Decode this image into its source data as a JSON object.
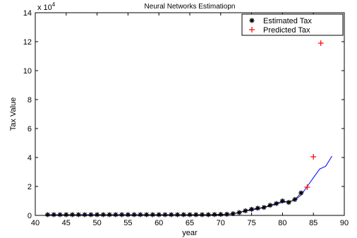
{
  "chart_data": {
    "type": "line",
    "title": "Neural Networks Estimatiopn",
    "xlabel": "year",
    "ylabel": "Tax Value",
    "y_exponent_label": "x 10",
    "y_exponent_power": "4",
    "xlim": [
      40,
      90
    ],
    "ylim": [
      0,
      14
    ],
    "x_ticks": [
      "40",
      "45",
      "50",
      "55",
      "60",
      "65",
      "70",
      "75",
      "80",
      "85",
      "90"
    ],
    "y_ticks": [
      "0",
      "2",
      "4",
      "6",
      "8",
      "10",
      "12",
      "14"
    ],
    "legend_position": "top-right",
    "grid": false,
    "series": [
      {
        "name": "Estimated Tax",
        "marker": "star",
        "color": "#000000",
        "x": [
          42,
          43,
          44,
          45,
          46,
          47,
          48,
          49,
          50,
          51,
          52,
          53,
          54,
          55,
          56,
          57,
          58,
          59,
          60,
          61,
          62,
          63,
          64,
          65,
          66,
          67,
          68,
          69,
          70,
          71,
          72,
          73,
          74,
          75,
          76,
          77,
          78,
          79,
          80,
          81,
          82,
          83
        ],
        "y": [
          0.05,
          0.05,
          0.05,
          0.05,
          0.05,
          0.05,
          0.05,
          0.05,
          0.05,
          0.05,
          0.05,
          0.05,
          0.05,
          0.05,
          0.05,
          0.05,
          0.05,
          0.05,
          0.05,
          0.05,
          0.05,
          0.05,
          0.05,
          0.05,
          0.05,
          0.05,
          0.05,
          0.06,
          0.07,
          0.08,
          0.12,
          0.2,
          0.32,
          0.42,
          0.5,
          0.55,
          0.7,
          0.82,
          1.0,
          0.9,
          1.1,
          1.55
        ]
      },
      {
        "name": "Predicted Tax",
        "marker": "plus",
        "color": "#ff0000",
        "x": [
          84,
          85,
          86.2
        ],
        "y": [
          1.95,
          4.05,
          11.9
        ]
      },
      {
        "name": "",
        "marker": "none",
        "color": "#0000ff",
        "x": [
          42,
          50,
          60,
          70,
          72,
          74,
          76,
          78,
          80,
          81,
          82,
          83,
          84,
          85,
          86,
          87,
          88
        ],
        "y": [
          0.03,
          0.03,
          0.03,
          0.05,
          0.1,
          0.3,
          0.45,
          0.65,
          0.9,
          0.95,
          1.05,
          1.4,
          2.0,
          2.6,
          3.2,
          3.4,
          4.1
        ]
      }
    ]
  }
}
